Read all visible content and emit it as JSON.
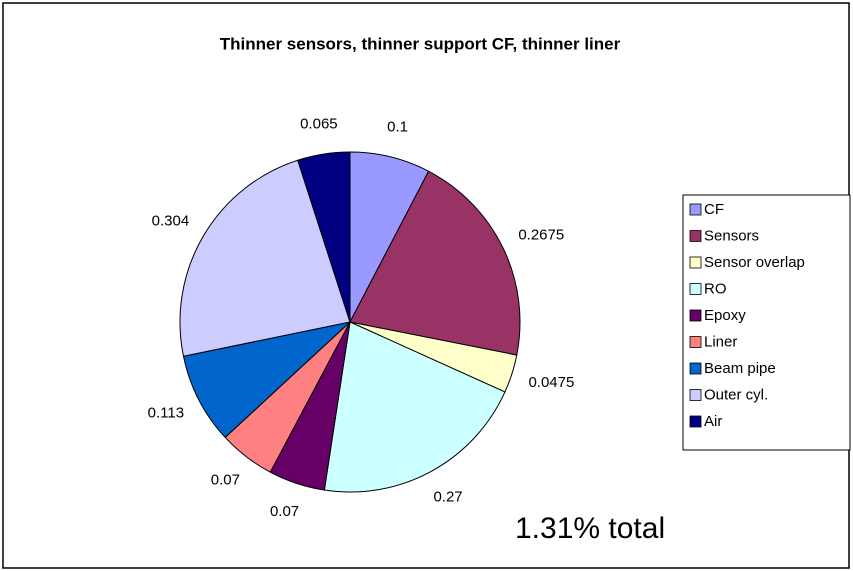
{
  "chart_data": {
    "type": "pie",
    "title": "Thinner sensors, thinner support CF, thinner liner",
    "categories": [
      "CF",
      "Sensors",
      "Sensor overlap",
      "RO",
      "Epoxy",
      "Liner",
      "Beam pipe",
      "Outer cyl.",
      "Air"
    ],
    "values": [
      0.1,
      0.2675,
      0.0475,
      0.27,
      0.07,
      0.07,
      0.113,
      0.304,
      0.065
    ],
    "colors": [
      "#9999ff",
      "#993366",
      "#ffffcc",
      "#ccffff",
      "#660066",
      "#ff8080",
      "#0066cc",
      "#ccccff",
      "#000080"
    ],
    "annotation": "1.31% total",
    "legend": "right"
  }
}
